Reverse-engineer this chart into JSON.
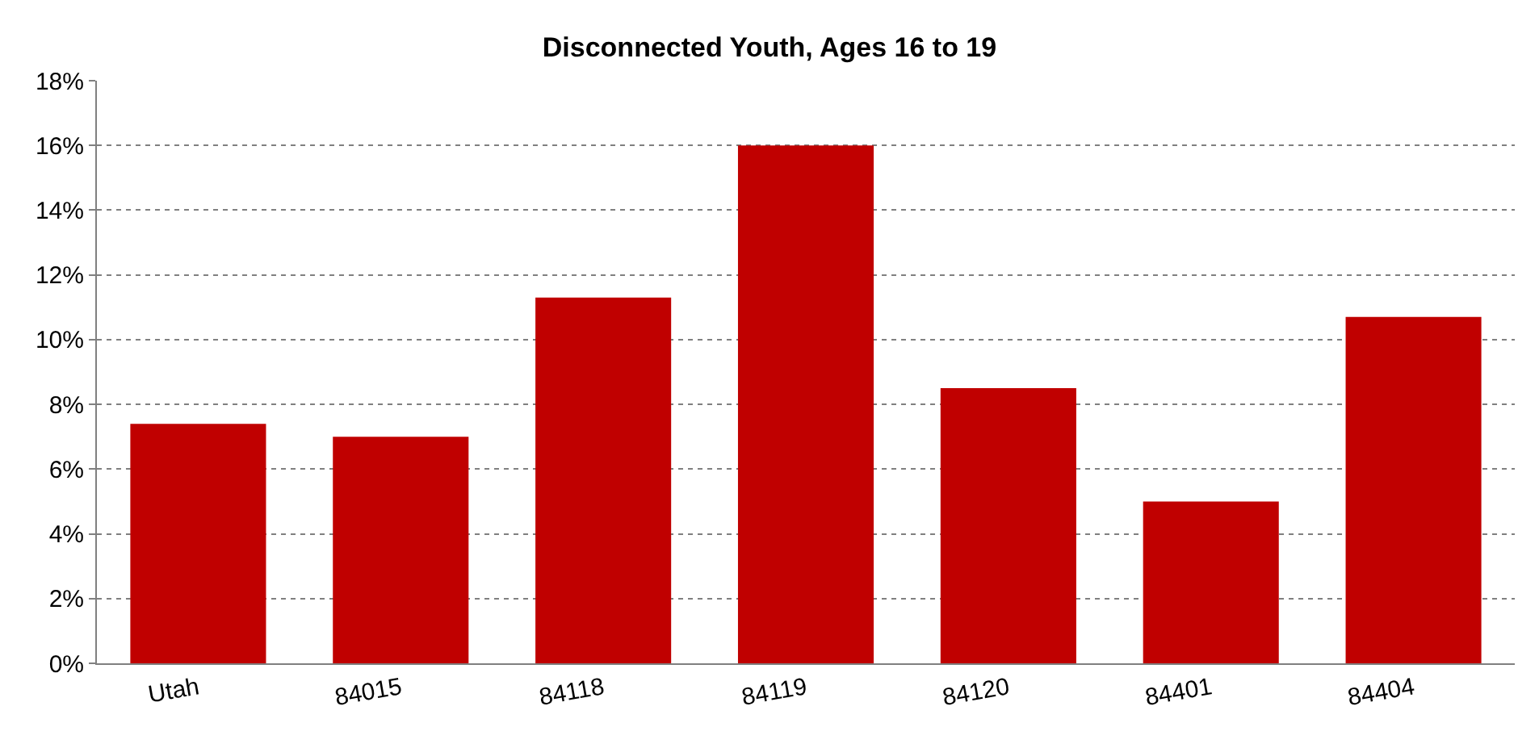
{
  "chart_data": {
    "type": "bar",
    "title": "Disconnected Youth, Ages 16 to 19",
    "categories": [
      "Utah",
      "84015",
      "84118",
      "84119",
      "84120",
      "84401",
      "84404"
    ],
    "values": [
      7.4,
      7.0,
      11.3,
      16.0,
      8.5,
      5.0,
      10.7
    ],
    "color": "#c00000",
    "ylim": [
      0,
      18
    ],
    "yticks": [
      {
        "value": 0,
        "label": "0%"
      },
      {
        "value": 2,
        "label": "2%"
      },
      {
        "value": 4,
        "label": "4%"
      },
      {
        "value": 6,
        "label": "6%"
      },
      {
        "value": 8,
        "label": "8%"
      },
      {
        "value": 10,
        "label": "10%"
      },
      {
        "value": 12,
        "label": "12%"
      },
      {
        "value": 14,
        "label": "14%"
      },
      {
        "value": 16,
        "label": "16%"
      },
      {
        "value": 18,
        "label": "18%"
      }
    ],
    "grid": "y",
    "legend": false
  }
}
